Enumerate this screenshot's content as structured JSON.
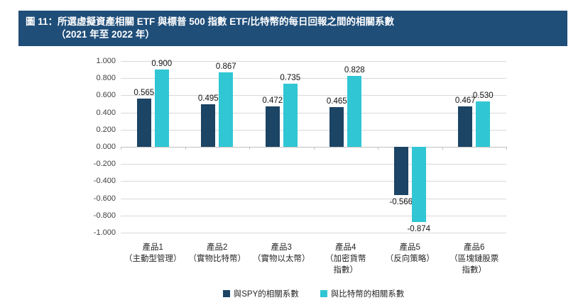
{
  "header": {
    "title_line1": "圖 11：所選虛擬資產相關 ETF 與標普 500 指數 ETF/比特幣的每日回報之間的相關系數",
    "title_line2": "（2021 年至 2022 年）",
    "bg_color": "#1F4E79"
  },
  "chart_data": {
    "type": "bar",
    "title": "所選虛擬資產相關 ETF 與標普 500 指數 ETF/比特幣的每日回報之間的相關系數（2021 年至 2022 年）",
    "categories": [
      {
        "name": "產品1",
        "sub": [
          "（主動型管理）"
        ]
      },
      {
        "name": "產品2",
        "sub": [
          "（實物比特幣）"
        ]
      },
      {
        "name": "產品3",
        "sub": [
          "（實物以太幣）"
        ]
      },
      {
        "name": "產品4",
        "sub": [
          "（加密貨幣",
          "指數）"
        ]
      },
      {
        "name": "產品5",
        "sub": [
          "（反向策略）"
        ]
      },
      {
        "name": "產品6",
        "sub": [
          "（區塊鏈股票",
          "指數）"
        ]
      }
    ],
    "series": [
      {
        "name": "與SPY的相關系數",
        "color": "#1B4465",
        "values": [
          0.565,
          0.495,
          0.472,
          0.465,
          -0.566,
          0.467
        ]
      },
      {
        "name": "與比特幣的相關系數",
        "color": "#30C6D4",
        "values": [
          0.9,
          0.867,
          0.735,
          0.828,
          -0.874,
          0.53
        ]
      }
    ],
    "ylim": [
      -1.0,
      1.0
    ],
    "ytick_step": 0.2,
    "value_label_decimals": 3,
    "grid": true,
    "gridline_color": "#D9D9D9",
    "axis_color": "#BFBFBF",
    "legend_position": "bottom",
    "xlabel": "",
    "ylabel": ""
  }
}
